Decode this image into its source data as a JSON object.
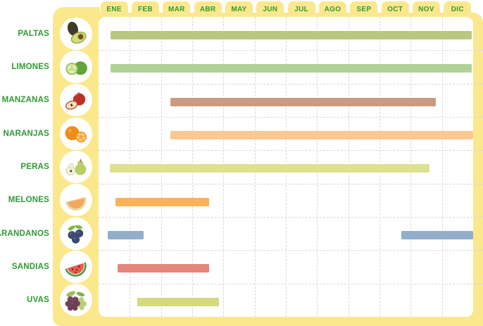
{
  "colors": {
    "page_background": "#ffffff",
    "panel_yellow": "#fbe88d",
    "month_text_green": "#2e9b33",
    "label_text_green": "#2e9b33",
    "gridline_gray": "#d8d8d8",
    "plot_background": "#ffffff"
  },
  "chart_data": {
    "type": "gantt",
    "categories": [
      "ENE",
      "FEB",
      "MAR",
      "ABR",
      "MAY",
      "JUN",
      "JUL",
      "AGO",
      "SEP",
      "OCT",
      "NOV",
      "DIC"
    ],
    "x_domain": [
      0,
      12
    ],
    "x_unit": "month-index (0 = inicio de ENE, 12 = fin de DIC)",
    "grid": "dashed",
    "legend": "none",
    "rows": [
      {
        "label": "PALTAS",
        "icon": "avocado-icon",
        "color": "#b8c97f",
        "intervals": [
          [
            0.38,
            11.95
          ]
        ]
      },
      {
        "label": "LIMONES",
        "icon": "lime-icon",
        "color": "#b1d295",
        "intervals": [
          [
            0.38,
            11.95
          ]
        ]
      },
      {
        "label": "MANZANAS",
        "icon": "apple-icon",
        "color": "#c99b81",
        "intervals": [
          [
            2.3,
            10.8
          ]
        ]
      },
      {
        "label": "NARANJAS",
        "icon": "orange-icon",
        "color": "#fcc892",
        "intervals": [
          [
            2.3,
            12.0
          ]
        ]
      },
      {
        "label": "PERAS",
        "icon": "pear-icon",
        "color": "#dee18d",
        "intervals": [
          [
            0.35,
            10.6
          ]
        ]
      },
      {
        "label": "MELONES",
        "icon": "melon-icon",
        "color": "#fbb25a",
        "intervals": [
          [
            0.55,
            3.55
          ]
        ]
      },
      {
        "label": "ARANDANOS",
        "icon": "blueberry-icon",
        "color": "#91aecb",
        "intervals": [
          [
            0.3,
            1.45
          ],
          [
            9.7,
            12.0
          ]
        ]
      },
      {
        "label": "SANDIAS",
        "icon": "watermelon-icon",
        "color": "#e5867c",
        "intervals": [
          [
            0.6,
            3.55
          ]
        ]
      },
      {
        "label": "UVAS",
        "icon": "grapes-icon",
        "color": "#d5da7e",
        "intervals": [
          [
            1.25,
            3.85
          ]
        ]
      }
    ]
  }
}
